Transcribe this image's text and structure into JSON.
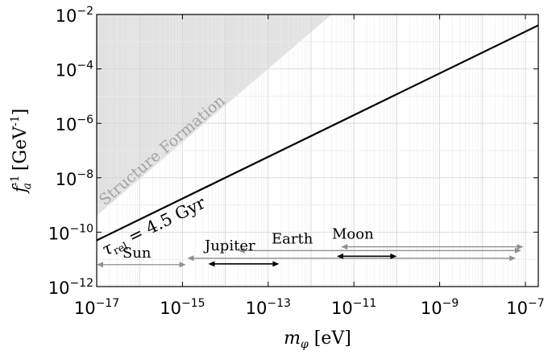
{
  "chart_data": {
    "type": "line",
    "title": "",
    "xlabel": "m_φ [eV]",
    "ylabel": "f_a^{-1} [GeV^{-1}]",
    "x_scale": "log",
    "y_scale": "log",
    "xlim": [
      1e-17,
      2e-07
    ],
    "ylim": [
      1e-12,
      0.01
    ],
    "grid": true,
    "x_ticks": [
      {
        "value": 1e-17,
        "base": "10",
        "exp": "−17"
      },
      {
        "value": 1e-15,
        "base": "10",
        "exp": "−15"
      },
      {
        "value": 1e-13,
        "base": "10",
        "exp": "−13"
      },
      {
        "value": 1e-11,
        "base": "10",
        "exp": "−11"
      },
      {
        "value": 1e-09,
        "base": "10",
        "exp": "−9"
      },
      {
        "value": 1e-07,
        "base": "10",
        "exp": "−7"
      }
    ],
    "y_ticks": [
      {
        "value": 1e-12,
        "base": "10",
        "exp": "−12"
      },
      {
        "value": 1e-10,
        "base": "10",
        "exp": "−10"
      },
      {
        "value": 1e-08,
        "base": "10",
        "exp": "−8"
      },
      {
        "value": 1e-06,
        "base": "10",
        "exp": "−6"
      },
      {
        "value": 0.0001,
        "base": "10",
        "exp": "−4"
      },
      {
        "value": 0.01,
        "base": "10",
        "exp": "−2"
      }
    ],
    "series": [
      {
        "label": "τ_rel = 4.5 Gyr",
        "color": "#000000",
        "x": [
          1e-17,
          2e-07
        ],
        "y": [
          5e-11,
          0.004
        ]
      }
    ],
    "regions": [
      {
        "label": "Structure Formation",
        "color": "#e2e2e2",
        "boundary_x": [
          1e-17,
          3e-12
        ],
        "boundary_y": [
          4e-10,
          0.01
        ]
      }
    ],
    "ranges": [
      {
        "label": "Sun",
        "color": "#909090",
        "x": [
          1e-17,
          1.2e-15
        ],
        "y": 6.4e-12
      },
      {
        "label": "Jupiter",
        "color": "#909090",
        "x": [
          1.3e-15,
          6e-08
        ],
        "y": 1.1e-11
      },
      {
        "label": "Earth",
        "color": "#909090",
        "x": [
          2e-14,
          8e-08
        ],
        "y": 2.1e-11
      },
      {
        "label": "Moon",
        "color": "#909090",
        "x": [
          5e-12,
          9e-08
        ],
        "y": 2.9e-11
      },
      {
        "label": "",
        "color": "#000000",
        "x": [
          4e-15,
          1.8e-13
        ],
        "y": 6.8e-12
      },
      {
        "label": "",
        "color": "#000000",
        "x": [
          4e-12,
          1e-10
        ],
        "y": 1.3e-11
      }
    ]
  }
}
